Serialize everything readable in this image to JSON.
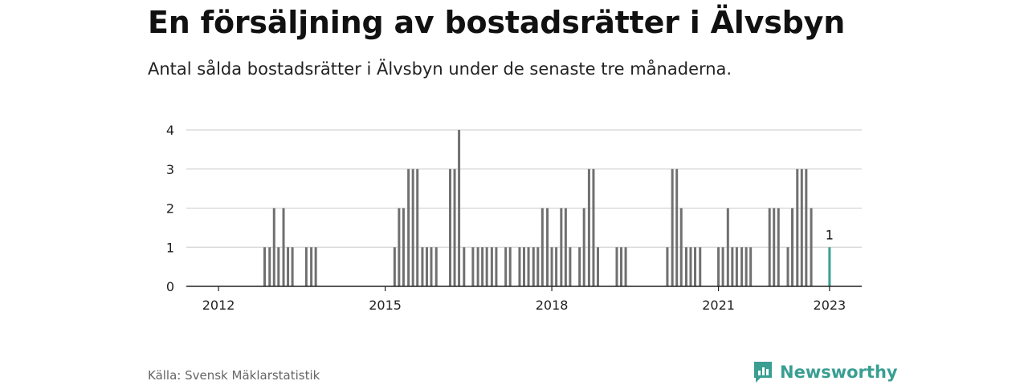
{
  "header": {
    "title": "En försäljning av bostadsrätter i Älvsbyn",
    "subtitle": "Antal sålda bostadsrätter i Älvsbyn under de senaste tre månaderna."
  },
  "footer": {
    "source": "Källa: Svensk Mäklarstatistik",
    "brand": "Newsworthy"
  },
  "colors": {
    "bar": "#707070",
    "highlight": "#3a9e92",
    "grid": "#d4d4d4",
    "axis": "#222222"
  },
  "chart_data": {
    "type": "bar",
    "title": "En försäljning av bostadsrätter i Älvsbyn",
    "xlabel": "",
    "ylabel": "",
    "ylim": [
      0,
      4
    ],
    "yticks": [
      0,
      1,
      2,
      3,
      4
    ],
    "xticks": [
      {
        "label": "2012",
        "year": 2012.0
      },
      {
        "label": "2015",
        "year": 2015.0
      },
      {
        "label": "2018",
        "year": 2018.0
      },
      {
        "label": "2021",
        "year": 2021.0
      },
      {
        "label": "2023",
        "year": 2023.0
      }
    ],
    "series": [
      {
        "name": "Sålda bostadsrätter",
        "points": [
          {
            "x": 2012.83,
            "y": 1
          },
          {
            "x": 2012.92,
            "y": 1
          },
          {
            "x": 2013.0,
            "y": 2
          },
          {
            "x": 2013.08,
            "y": 1
          },
          {
            "x": 2013.17,
            "y": 2
          },
          {
            "x": 2013.25,
            "y": 1
          },
          {
            "x": 2013.33,
            "y": 1
          },
          {
            "x": 2013.58,
            "y": 1
          },
          {
            "x": 2013.67,
            "y": 1
          },
          {
            "x": 2013.75,
            "y": 1
          },
          {
            "x": 2015.17,
            "y": 1
          },
          {
            "x": 2015.25,
            "y": 2
          },
          {
            "x": 2015.33,
            "y": 2
          },
          {
            "x": 2015.42,
            "y": 3
          },
          {
            "x": 2015.5,
            "y": 3
          },
          {
            "x": 2015.58,
            "y": 3
          },
          {
            "x": 2015.67,
            "y": 1
          },
          {
            "x": 2015.75,
            "y": 1
          },
          {
            "x": 2015.83,
            "y": 1
          },
          {
            "x": 2015.92,
            "y": 1
          },
          {
            "x": 2016.17,
            "y": 3
          },
          {
            "x": 2016.25,
            "y": 3
          },
          {
            "x": 2016.33,
            "y": 4
          },
          {
            "x": 2016.42,
            "y": 1
          },
          {
            "x": 2016.58,
            "y": 1
          },
          {
            "x": 2016.67,
            "y": 1
          },
          {
            "x": 2016.75,
            "y": 1
          },
          {
            "x": 2016.83,
            "y": 1
          },
          {
            "x": 2016.92,
            "y": 1
          },
          {
            "x": 2017.0,
            "y": 1
          },
          {
            "x": 2017.17,
            "y": 1
          },
          {
            "x": 2017.25,
            "y": 1
          },
          {
            "x": 2017.42,
            "y": 1
          },
          {
            "x": 2017.5,
            "y": 1
          },
          {
            "x": 2017.58,
            "y": 1
          },
          {
            "x": 2017.67,
            "y": 1
          },
          {
            "x": 2017.75,
            "y": 1
          },
          {
            "x": 2017.83,
            "y": 2
          },
          {
            "x": 2017.92,
            "y": 2
          },
          {
            "x": 2018.0,
            "y": 1
          },
          {
            "x": 2018.08,
            "y": 1
          },
          {
            "x": 2018.17,
            "y": 2
          },
          {
            "x": 2018.25,
            "y": 2
          },
          {
            "x": 2018.33,
            "y": 1
          },
          {
            "x": 2018.5,
            "y": 1
          },
          {
            "x": 2018.58,
            "y": 2
          },
          {
            "x": 2018.67,
            "y": 3
          },
          {
            "x": 2018.75,
            "y": 3
          },
          {
            "x": 2018.83,
            "y": 1
          },
          {
            "x": 2019.17,
            "y": 1
          },
          {
            "x": 2019.25,
            "y": 1
          },
          {
            "x": 2019.33,
            "y": 1
          },
          {
            "x": 2020.08,
            "y": 1
          },
          {
            "x": 2020.17,
            "y": 3
          },
          {
            "x": 2020.25,
            "y": 3
          },
          {
            "x": 2020.33,
            "y": 2
          },
          {
            "x": 2020.42,
            "y": 1
          },
          {
            "x": 2020.5,
            "y": 1
          },
          {
            "x": 2020.58,
            "y": 1
          },
          {
            "x": 2020.67,
            "y": 1
          },
          {
            "x": 2021.0,
            "y": 1
          },
          {
            "x": 2021.08,
            "y": 1
          },
          {
            "x": 2021.17,
            "y": 2
          },
          {
            "x": 2021.25,
            "y": 1
          },
          {
            "x": 2021.33,
            "y": 1
          },
          {
            "x": 2021.42,
            "y": 1
          },
          {
            "x": 2021.5,
            "y": 1
          },
          {
            "x": 2021.58,
            "y": 1
          },
          {
            "x": 2021.92,
            "y": 2
          },
          {
            "x": 2022.0,
            "y": 2
          },
          {
            "x": 2022.08,
            "y": 2
          },
          {
            "x": 2022.25,
            "y": 1
          },
          {
            "x": 2022.33,
            "y": 2
          },
          {
            "x": 2022.42,
            "y": 3
          },
          {
            "x": 2022.5,
            "y": 3
          },
          {
            "x": 2022.58,
            "y": 3
          },
          {
            "x": 2022.67,
            "y": 2
          },
          {
            "x": 2023.0,
            "y": 1
          }
        ]
      }
    ],
    "highlight": {
      "x": 2023.0,
      "y": 1,
      "label": "1"
    },
    "xlim": [
      2011.42,
      2023.58
    ]
  }
}
